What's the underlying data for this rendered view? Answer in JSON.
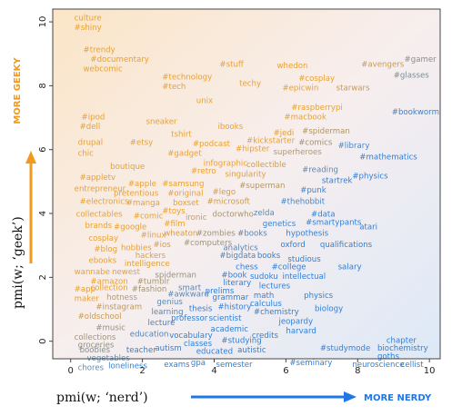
{
  "chart_data": {
    "type": "scatter",
    "xlabel": "pmi(w; ‘nerd’)",
    "ylabel": "pmi(w; ‘geek’)",
    "xlim": [
      -0.5,
      10.3
    ],
    "ylim": [
      -0.55,
      10.4
    ],
    "xticks": [
      "0",
      "2",
      "4",
      "6",
      "8",
      "10"
    ],
    "yticks": [
      "0",
      "2",
      "4",
      "6",
      "8",
      "10"
    ],
    "x_direction_label": "MORE NERDY",
    "y_direction_label": "MORE GEEKY",
    "colors": {
      "geeky": "#e8a133",
      "nerdy": "#2f7fd8",
      "y_arrow": "#f29a1c",
      "x_arrow": "#1f78e6"
    },
    "points": [
      {
        "text": "culture",
        "x": 0.1,
        "y": 10.05
      },
      {
        "text": "#shiny",
        "x": 0.1,
        "y": 9.75
      },
      {
        "text": "#trendy",
        "x": 0.35,
        "y": 9.05
      },
      {
        "text": "#documentary",
        "x": 0.55,
        "y": 8.75
      },
      {
        "text": "webcomic",
        "x": 0.35,
        "y": 8.45
      },
      {
        "text": "#stuff",
        "x": 4.15,
        "y": 8.6
      },
      {
        "text": "whedon",
        "x": 5.75,
        "y": 8.55
      },
      {
        "text": "#avengers",
        "x": 8.1,
        "y": 8.6
      },
      {
        "text": "#gamer",
        "x": 9.3,
        "y": 8.75
      },
      {
        "text": "#technology",
        "x": 2.55,
        "y": 8.2
      },
      {
        "text": "#tech",
        "x": 2.55,
        "y": 7.9
      },
      {
        "text": "techy",
        "x": 4.7,
        "y": 8.0
      },
      {
        "text": "#cosplay",
        "x": 6.35,
        "y": 8.15
      },
      {
        "text": "#epicwin",
        "x": 5.9,
        "y": 7.85
      },
      {
        "text": "starwars",
        "x": 7.4,
        "y": 7.85
      },
      {
        "text": "#glasses",
        "x": 9.0,
        "y": 8.25
      },
      {
        "text": "unix",
        "x": 3.5,
        "y": 7.45
      },
      {
        "text": "#raspberrypi",
        "x": 6.15,
        "y": 7.25
      },
      {
        "text": "#macbook",
        "x": 5.95,
        "y": 6.95
      },
      {
        "text": "#bookworm",
        "x": 8.95,
        "y": 7.1
      },
      {
        "text": "#ipod",
        "x": 0.3,
        "y": 6.95
      },
      {
        "text": "#dell",
        "x": 0.25,
        "y": 6.65
      },
      {
        "text": "sneaker",
        "x": 2.1,
        "y": 6.8
      },
      {
        "text": "ibooks",
        "x": 4.1,
        "y": 6.65
      },
      {
        "text": "#spiderman",
        "x": 6.45,
        "y": 6.5
      },
      {
        "text": "tshirt",
        "x": 2.8,
        "y": 6.4
      },
      {
        "text": "#jedi",
        "x": 5.65,
        "y": 6.45
      },
      {
        "text": "#kickstarter",
        "x": 4.9,
        "y": 6.2
      },
      {
        "text": "#comics",
        "x": 6.35,
        "y": 6.15
      },
      {
        "text": "drupal",
        "x": 0.2,
        "y": 6.15
      },
      {
        "text": "#etsy",
        "x": 1.65,
        "y": 6.15
      },
      {
        "text": "#podcast",
        "x": 3.4,
        "y": 6.1
      },
      {
        "text": "#hipster",
        "x": 4.6,
        "y": 5.95
      },
      {
        "text": "superheroes",
        "x": 5.65,
        "y": 5.85
      },
      {
        "text": "#library",
        "x": 7.45,
        "y": 6.05
      },
      {
        "text": "chic",
        "x": 0.2,
        "y": 5.8
      },
      {
        "text": "#gadget",
        "x": 2.7,
        "y": 5.8
      },
      {
        "text": "#mathematics",
        "x": 8.05,
        "y": 5.7
      },
      {
        "text": "infographic",
        "x": 3.7,
        "y": 5.5
      },
      {
        "text": "collectible",
        "x": 4.9,
        "y": 5.45
      },
      {
        "text": "boutique",
        "x": 1.1,
        "y": 5.4
      },
      {
        "text": "#retro",
        "x": 3.35,
        "y": 5.25
      },
      {
        "text": "singularity",
        "x": 4.3,
        "y": 5.15
      },
      {
        "text": "#reading",
        "x": 6.45,
        "y": 5.3
      },
      {
        "text": "#physics",
        "x": 7.85,
        "y": 5.1
      },
      {
        "text": "#appletv",
        "x": 0.25,
        "y": 5.05
      },
      {
        "text": "#apple",
        "x": 1.6,
        "y": 4.85
      },
      {
        "text": "#samsung",
        "x": 2.55,
        "y": 4.85
      },
      {
        "text": "#superman",
        "x": 4.7,
        "y": 4.8
      },
      {
        "text": "startrek",
        "x": 7.0,
        "y": 4.95
      },
      {
        "text": "entrepreneur",
        "x": 0.1,
        "y": 4.7
      },
      {
        "text": "pretentious",
        "x": 1.2,
        "y": 4.55
      },
      {
        "text": "#original",
        "x": 2.7,
        "y": 4.55
      },
      {
        "text": "#lego",
        "x": 3.95,
        "y": 4.6
      },
      {
        "text": "#punk",
        "x": 6.4,
        "y": 4.65
      },
      {
        "text": "#electronics",
        "x": 0.25,
        "y": 4.3
      },
      {
        "text": "#manga",
        "x": 1.55,
        "y": 4.25
      },
      {
        "text": "boxset",
        "x": 2.85,
        "y": 4.25
      },
      {
        "text": "#microsoft",
        "x": 3.8,
        "y": 4.3
      },
      {
        "text": "#thehobbit",
        "x": 5.85,
        "y": 4.3
      },
      {
        "text": "#toys",
        "x": 2.55,
        "y": 4.0
      },
      {
        "text": "zelda",
        "x": 5.1,
        "y": 3.95
      },
      {
        "text": "#data",
        "x": 6.7,
        "y": 3.9
      },
      {
        "text": "collectables",
        "x": 0.15,
        "y": 3.9
      },
      {
        "text": "#comic",
        "x": 1.75,
        "y": 3.85
      },
      {
        "text": "ironic",
        "x": 3.2,
        "y": 3.8
      },
      {
        "text": "doctorwho",
        "x": 3.95,
        "y": 3.9
      },
      {
        "text": "#smartypants",
        "x": 6.55,
        "y": 3.65
      },
      {
        "text": "brands",
        "x": 0.4,
        "y": 3.55
      },
      {
        "text": "#google",
        "x": 1.2,
        "y": 3.5
      },
      {
        "text": "#film",
        "x": 2.6,
        "y": 3.6
      },
      {
        "text": "genetics",
        "x": 5.35,
        "y": 3.6
      },
      {
        "text": "atari",
        "x": 8.05,
        "y": 3.5
      },
      {
        "text": "#linux",
        "x": 1.95,
        "y": 3.25
      },
      {
        "text": "wheaton",
        "x": 2.6,
        "y": 3.3
      },
      {
        "text": "#zombies",
        "x": 3.5,
        "y": 3.3
      },
      {
        "text": "#books",
        "x": 4.65,
        "y": 3.3
      },
      {
        "text": "hypothesis",
        "x": 6.0,
        "y": 3.3
      },
      {
        "text": "cosplay",
        "x": 0.5,
        "y": 3.15
      },
      {
        "text": "#blog",
        "x": 0.65,
        "y": 2.8
      },
      {
        "text": "hobbies",
        "x": 1.4,
        "y": 2.85
      },
      {
        "text": "#ios",
        "x": 2.3,
        "y": 2.95
      },
      {
        "text": "#computers",
        "x": 3.15,
        "y": 3.0
      },
      {
        "text": "analytics",
        "x": 4.25,
        "y": 2.85
      },
      {
        "text": "oxford",
        "x": 5.85,
        "y": 2.95
      },
      {
        "text": "qualifications",
        "x": 6.95,
        "y": 2.95
      },
      {
        "text": "hackers",
        "x": 1.8,
        "y": 2.6
      },
      {
        "text": "#bigdata",
        "x": 4.15,
        "y": 2.6
      },
      {
        "text": "books",
        "x": 5.2,
        "y": 2.6
      },
      {
        "text": "studious",
        "x": 6.05,
        "y": 2.5
      },
      {
        "text": "ebooks",
        "x": 0.5,
        "y": 2.45
      },
      {
        "text": "intelligence",
        "x": 1.5,
        "y": 2.35
      },
      {
        "text": "chess",
        "x": 4.6,
        "y": 2.25
      },
      {
        "text": "#college",
        "x": 5.6,
        "y": 2.25
      },
      {
        "text": "salary",
        "x": 7.45,
        "y": 2.25
      },
      {
        "text": "wannabe",
        "x": 0.1,
        "y": 2.1
      },
      {
        "text": "newest",
        "x": 1.15,
        "y": 2.1
      },
      {
        "text": "spiderman",
        "x": 2.35,
        "y": 2.0
      },
      {
        "text": "#book",
        "x": 4.2,
        "y": 2.0
      },
      {
        "text": "sudoku",
        "x": 5.0,
        "y": 1.95
      },
      {
        "text": "intellectual",
        "x": 5.9,
        "y": 1.95
      },
      {
        "text": "#amazon",
        "x": 0.55,
        "y": 1.8
      },
      {
        "text": "#tumblr",
        "x": 1.85,
        "y": 1.8
      },
      {
        "text": "literary",
        "x": 4.25,
        "y": 1.75
      },
      {
        "text": "lectures",
        "x": 5.25,
        "y": 1.65
      },
      {
        "text": "#app",
        "x": 0.1,
        "y": 1.55
      },
      {
        "text": "collection",
        "x": 0.55,
        "y": 1.6
      },
      {
        "text": "#fashion",
        "x": 1.7,
        "y": 1.55
      },
      {
        "text": "smart",
        "x": 3.0,
        "y": 1.6
      },
      {
        "text": "prelims",
        "x": 3.75,
        "y": 1.5
      },
      {
        "text": "#awkward",
        "x": 2.7,
        "y": 1.4
      },
      {
        "text": "grammar",
        "x": 3.95,
        "y": 1.3
      },
      {
        "text": "math",
        "x": 5.1,
        "y": 1.35
      },
      {
        "text": "physics",
        "x": 6.5,
        "y": 1.35
      },
      {
        "text": "maker",
        "x": 0.1,
        "y": 1.25
      },
      {
        "text": "hotness",
        "x": 1.0,
        "y": 1.3
      },
      {
        "text": "genius",
        "x": 2.4,
        "y": 1.15
      },
      {
        "text": "calculus",
        "x": 5.0,
        "y": 1.1
      },
      {
        "text": "#instagram",
        "x": 0.7,
        "y": 1.0
      },
      {
        "text": "thesis",
        "x": 3.3,
        "y": 0.95
      },
      {
        "text": "#history",
        "x": 4.1,
        "y": 1.0
      },
      {
        "text": "biology",
        "x": 6.8,
        "y": 0.95
      },
      {
        "text": "learning",
        "x": 2.25,
        "y": 0.85
      },
      {
        "text": "#chemistry",
        "x": 5.1,
        "y": 0.85
      },
      {
        "text": "#oldschool",
        "x": 0.2,
        "y": 0.7
      },
      {
        "text": "professor",
        "x": 2.8,
        "y": 0.65
      },
      {
        "text": "scientist",
        "x": 3.85,
        "y": 0.65
      },
      {
        "text": "lecture",
        "x": 2.15,
        "y": 0.5
      },
      {
        "text": "jeopardy",
        "x": 5.8,
        "y": 0.55
      },
      {
        "text": "#music",
        "x": 0.7,
        "y": 0.35
      },
      {
        "text": "academic",
        "x": 3.9,
        "y": 0.3
      },
      {
        "text": "harvard",
        "x": 6.0,
        "y": 0.25
      },
      {
        "text": "collections",
        "x": 0.1,
        "y": 0.05
      },
      {
        "text": "education",
        "x": 1.65,
        "y": 0.15
      },
      {
        "text": "vocabulary",
        "x": 2.75,
        "y": 0.1
      },
      {
        "text": "credits",
        "x": 5.05,
        "y": 0.1
      },
      {
        "text": "groceries",
        "x": 0.2,
        "y": -0.2
      },
      {
        "text": "autism",
        "x": 2.35,
        "y": -0.3
      },
      {
        "text": "classes",
        "x": 3.15,
        "y": -0.15
      },
      {
        "text": "#studying",
        "x": 4.2,
        "y": -0.05
      },
      {
        "text": "chapter",
        "x": 8.8,
        "y": -0.05
      },
      {
        "text": "boobies",
        "x": 0.25,
        "y": -0.35
      },
      {
        "text": "teacher",
        "x": 1.55,
        "y": -0.35
      },
      {
        "text": "educated",
        "x": 3.5,
        "y": -0.4
      },
      {
        "text": "autistic",
        "x": 4.65,
        "y": -0.35
      },
      {
        "text": "#studymode",
        "x": 6.95,
        "y": -0.3
      },
      {
        "text": "biochemistry",
        "x": 8.55,
        "y": -0.3
      },
      {
        "text": "vegetables",
        "x": 0.45,
        "y": -0.6
      },
      {
        "text": "goths",
        "x": 8.55,
        "y": -0.55
      },
      {
        "text": "chores",
        "x": 0.2,
        "y": -0.9
      },
      {
        "text": "loneliness",
        "x": 1.05,
        "y": -0.85
      },
      {
        "text": "exams",
        "x": 2.6,
        "y": -0.8
      },
      {
        "text": "gpa",
        "x": 3.35,
        "y": -0.75
      },
      {
        "text": "semester",
        "x": 4.05,
        "y": -0.8
      },
      {
        "text": "#seminary",
        "x": 6.1,
        "y": -0.75
      },
      {
        "text": "neuroscience",
        "x": 7.85,
        "y": -0.8
      },
      {
        "text": "cellist",
        "x": 9.2,
        "y": -0.8
      }
    ]
  }
}
